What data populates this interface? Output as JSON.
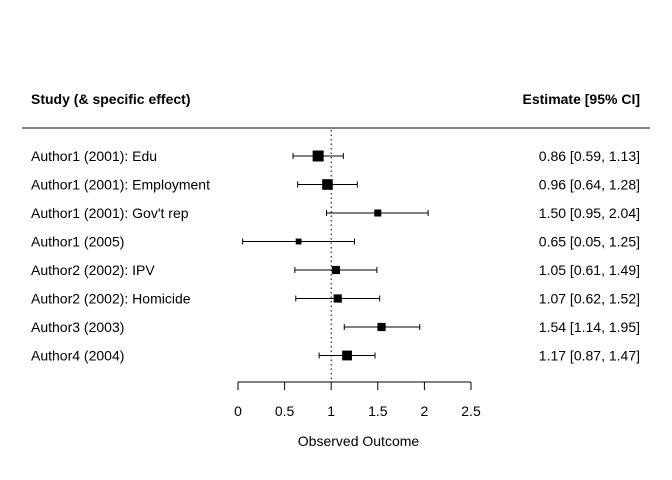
{
  "chart_data": {
    "type": "forest",
    "headers": {
      "study": "Study (& specific effect)",
      "estimate": "Estimate [95% CI]"
    },
    "xlabel": "Observed Outcome",
    "xlim": [
      0,
      2.5
    ],
    "xticks": [
      0,
      0.5,
      1,
      1.5,
      2,
      2.5
    ],
    "xtick_labels": [
      "0",
      "0.5",
      "1",
      "1.5",
      "2",
      "2.5"
    ],
    "reference_line": 1,
    "rows": [
      {
        "label": "Author1 (2001): Edu",
        "estimate": 0.86,
        "lower": 0.59,
        "upper": 1.13,
        "text": "0.86 [0.59, 1.13]",
        "weight": 1.0
      },
      {
        "label": "Author1 (2001): Employment",
        "estimate": 0.96,
        "lower": 0.64,
        "upper": 1.28,
        "text": "0.96 [0.64, 1.28]",
        "weight": 0.95
      },
      {
        "label": "Author1 (2001): Gov't rep",
        "estimate": 1.5,
        "lower": 0.95,
        "upper": 2.04,
        "text": "1.50 [0.95, 2.04]",
        "weight": 0.5
      },
      {
        "label": "Author1 (2005)",
        "estimate": 0.65,
        "lower": 0.05,
        "upper": 1.25,
        "text": "0.65 [0.05, 1.25]",
        "weight": 0.35
      },
      {
        "label": "Author2 (2002): IPV",
        "estimate": 1.05,
        "lower": 0.61,
        "upper": 1.49,
        "text": "1.05 [0.61, 1.49]",
        "weight": 0.65
      },
      {
        "label": "Author2 (2002): Homicide",
        "estimate": 1.07,
        "lower": 0.62,
        "upper": 1.52,
        "text": "1.07 [0.62, 1.52]",
        "weight": 0.65
      },
      {
        "label": "Author3 (2003)",
        "estimate": 1.54,
        "lower": 1.14,
        "upper": 1.95,
        "text": "1.54 [1.14, 1.95]",
        "weight": 0.65
      },
      {
        "label": "Author4 (2004)",
        "estimate": 1.17,
        "lower": 0.87,
        "upper": 1.47,
        "text": "1.17 [0.87, 1.47]",
        "weight": 0.85
      }
    ]
  }
}
